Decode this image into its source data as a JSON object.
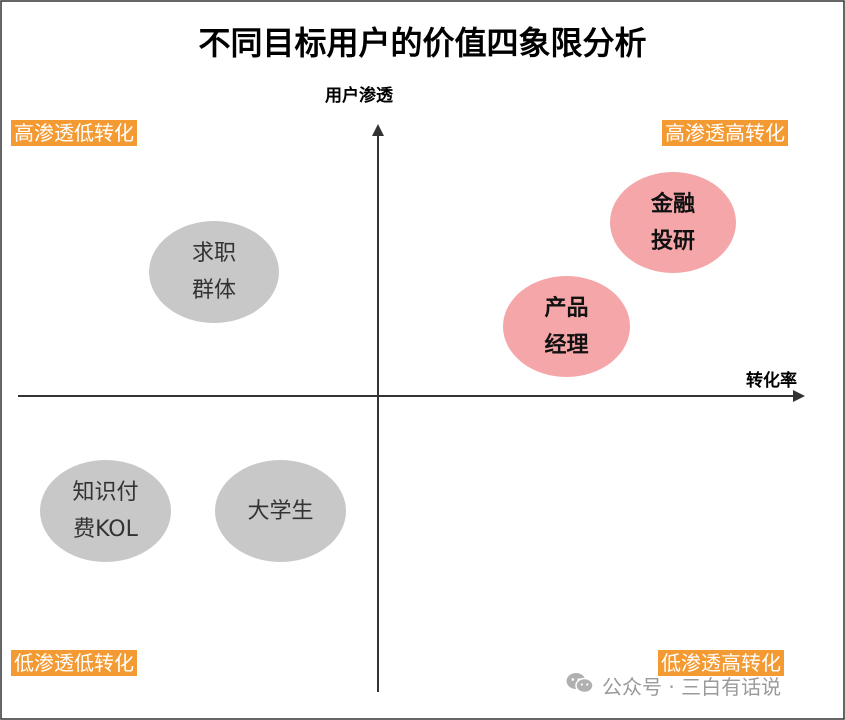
{
  "title": "不同目标用户的价值四象限分析",
  "axes": {
    "y_label": "用户渗透",
    "x_label": "转化率"
  },
  "quadrants": {
    "top_left": "高渗透低转化",
    "top_right": "高渗透高转化",
    "bottom_left": "低渗透低转化",
    "bottom_right": "低渗透高转化"
  },
  "bubbles": {
    "job_seekers": "求职\n群体",
    "finance": "金融\n投研",
    "product_manager": "产品\n经理",
    "kol": "知识付\n费KOL",
    "students": "大学生"
  },
  "watermark": {
    "text": "公众号 · 三白有话说",
    "icon": "wechat-icon"
  },
  "colors": {
    "quadrant_label_bg": "#f39a33",
    "grey_bubble": "#c8c8c8",
    "pink_bubble": "#f4a6a8",
    "axis": "#333333"
  }
}
